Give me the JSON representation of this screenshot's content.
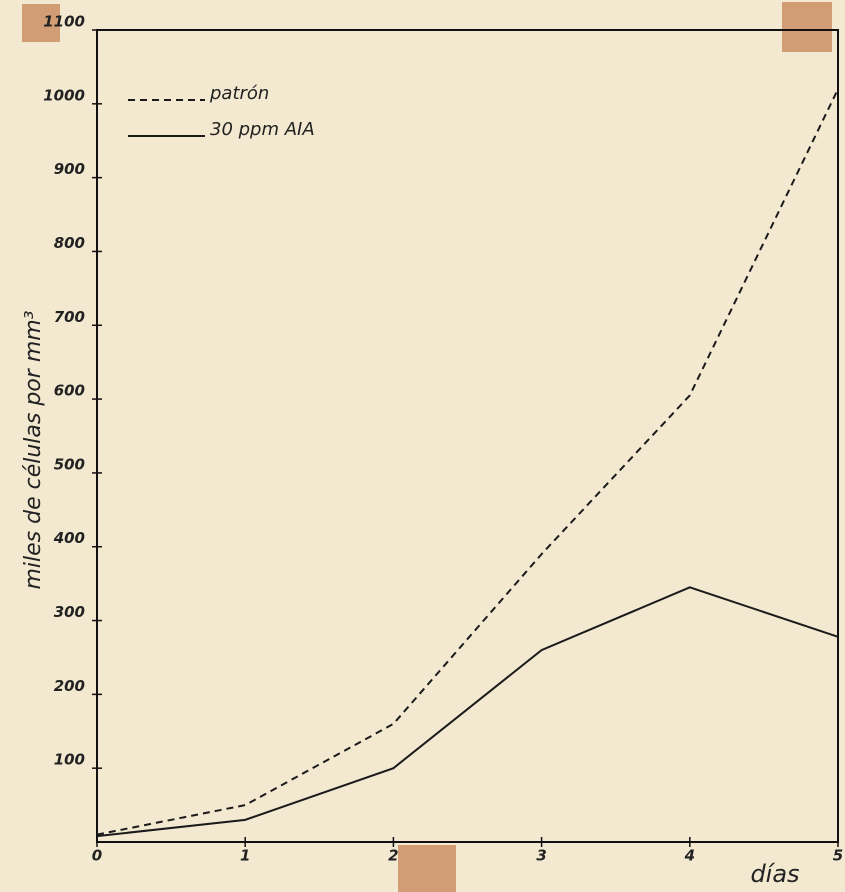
{
  "chart_data": {
    "type": "line",
    "x_label": "días",
    "y_label": "miles de células por mm³",
    "x": [
      0,
      1,
      2,
      3,
      4,
      5
    ],
    "xlim": [
      0,
      5
    ],
    "xticks": [
      0,
      1,
      2,
      3,
      4,
      5
    ],
    "ylim": [
      0,
      1100
    ],
    "yticks": [
      100,
      200,
      300,
      400,
      500,
      600,
      700,
      800,
      900,
      1000,
      1100
    ],
    "legend": "upper left",
    "series": [
      {
        "name": "patrón",
        "color": "#1a1a1a",
        "dash": true,
        "values": [
          10,
          50,
          160,
          390,
          605,
          1020
        ]
      },
      {
        "name": "30 ppm AIA",
        "color": "#1a1a1a",
        "dash": false,
        "values": [
          8,
          30,
          100,
          260,
          345,
          278
        ]
      }
    ]
  }
}
